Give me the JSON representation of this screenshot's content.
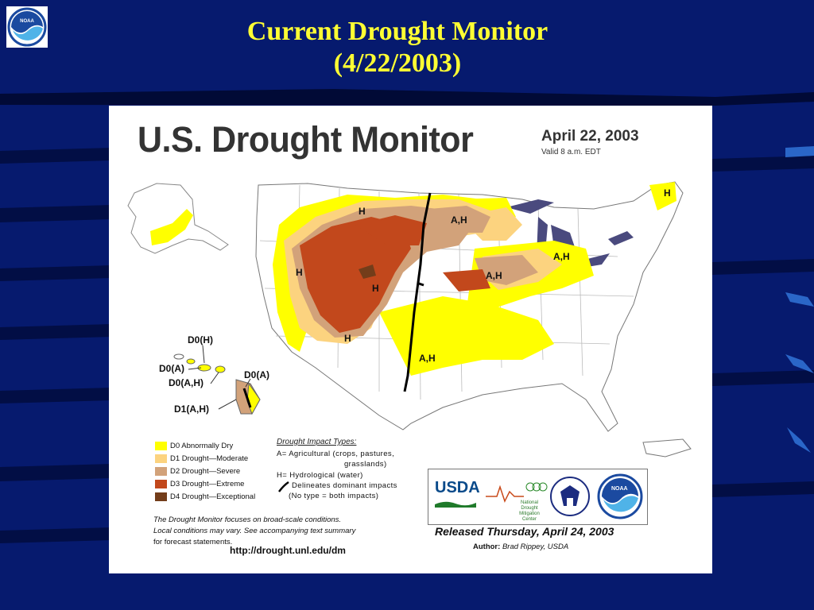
{
  "slide": {
    "title_line1": "Current Drought Monitor",
    "title_line2": "(4/22/2003)"
  },
  "map": {
    "heading": "U.S. Drought Monitor",
    "date": "April 22, 2003",
    "valid": "Valid 8 a.m. EDT",
    "impact_labels": [
      "H",
      "A,H",
      "H",
      "H",
      "H",
      "A,H",
      "A,H",
      "A,H",
      "H"
    ],
    "hawaii_labels": [
      "D0(H)",
      "D0(A)",
      "D0(A,H)",
      "D0(A)",
      "D1(A,H)"
    ],
    "legend": [
      {
        "label": "D0 Abnormally Dry",
        "color": "#ffff00"
      },
      {
        "label": "D1 Drought—Moderate",
        "color": "#fcd37f"
      },
      {
        "label": "D2 Drought—Severe",
        "color": "#d2a27a"
      },
      {
        "label": "D3 Drought—Extreme",
        "color": "#c2481c"
      },
      {
        "label": "D4 Drought—Exceptional",
        "color": "#733d1a"
      }
    ],
    "impacts": {
      "heading": "Drought Impact Types:",
      "a": "A= Agricultural (crops, pastures,",
      "a2": "grasslands)",
      "h": "H= Hydrological (water)",
      "line": "Delineates dominant impacts",
      "none": "(No type = both impacts)"
    },
    "notes": [
      "The Drought Monitor focuses on broad-scale conditions.",
      "Local conditions may vary. See accompanying text summary",
      "for forecast statements."
    ],
    "url": "http://drought.unl.edu/dm",
    "released": "Released Thursday, April 24, 2003",
    "author_label": "Author:",
    "author": "Brad Rippey, USDA",
    "logos": {
      "usda": "USDA",
      "ndmc": "National Drought Mitigation Center",
      "noaa": "NOAA"
    }
  }
}
